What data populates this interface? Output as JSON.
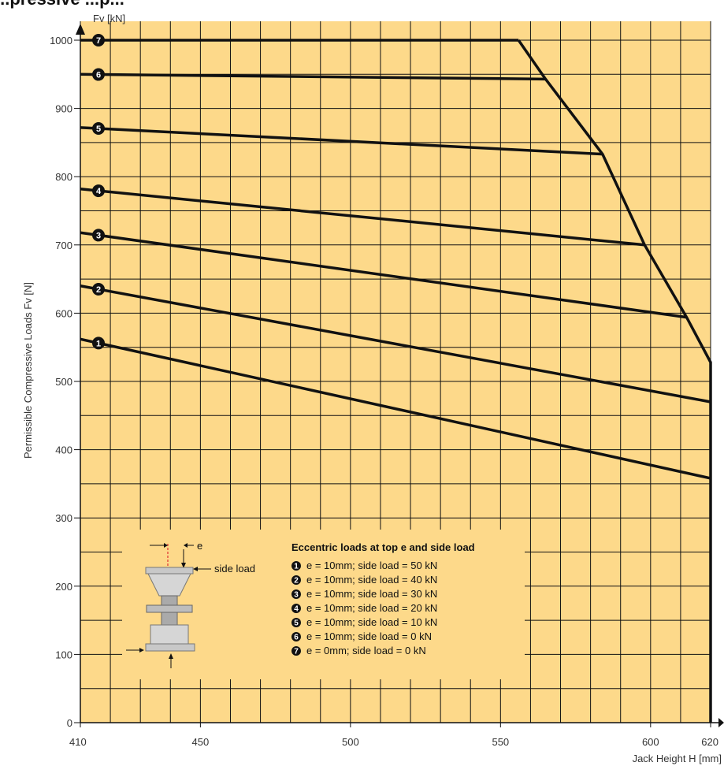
{
  "page_title": "...pressive ...p...",
  "chart_data": {
    "type": "line",
    "title": "",
    "xlabel": "Jack Height H [mm]",
    "ylabel": "Permissible Compressive Loads Fv [N]",
    "y_axis_unit_label": "Fv [kN]",
    "xlim": [
      410,
      620
    ],
    "ylim": [
      0,
      1000
    ],
    "x_ticks": [
      410,
      450,
      500,
      550,
      600,
      620
    ],
    "y_ticks": [
      0,
      100,
      200,
      300,
      400,
      500,
      600,
      700,
      800,
      900,
      1000
    ],
    "grid": true,
    "background_color": "#fdd98a",
    "line_color": "#111111",
    "series": [
      {
        "name": "1",
        "x": [
          410,
          620
        ],
        "y": [
          562,
          358
        ]
      },
      {
        "name": "2",
        "x": [
          410,
          620
        ],
        "y": [
          640,
          470
        ]
      },
      {
        "name": "3",
        "x": [
          410,
          612
        ],
        "y": [
          718,
          594
        ]
      },
      {
        "name": "4",
        "x": [
          410,
          598
        ],
        "y": [
          782,
          700
        ]
      },
      {
        "name": "5",
        "x": [
          410,
          584
        ],
        "y": [
          872,
          833
        ]
      },
      {
        "name": "6",
        "x": [
          410,
          565
        ],
        "y": [
          950,
          943
        ]
      },
      {
        "name": "7",
        "x": [
          410,
          556
        ],
        "y": [
          1000,
          1000
        ]
      }
    ],
    "envelope": {
      "x": [
        556,
        565,
        584,
        598,
        612,
        620,
        620
      ],
      "y": [
        1000,
        943,
        833,
        700,
        594,
        528,
        0
      ]
    },
    "legend": {
      "title": "Eccentric loads at top e and side load",
      "placement": "bottom-center",
      "entries": [
        {
          "num": "1",
          "text": "e = 10mm; side load = 50 kN"
        },
        {
          "num": "2",
          "text": "e = 10mm; side load = 40 kN"
        },
        {
          "num": "3",
          "text": "e = 10mm; side load = 30 kN"
        },
        {
          "num": "4",
          "text": "e = 10mm; side load = 20 kN"
        },
        {
          "num": "5",
          "text": "e = 10mm; side load = 10 kN"
        },
        {
          "num": "6",
          "text": "e = 10mm; side load = 0 kN"
        },
        {
          "num": "7",
          "text": "e = 0mm; side load = 0 kN"
        }
      ]
    },
    "diagram_labels": {
      "e": "e",
      "side_load": "side load"
    }
  }
}
